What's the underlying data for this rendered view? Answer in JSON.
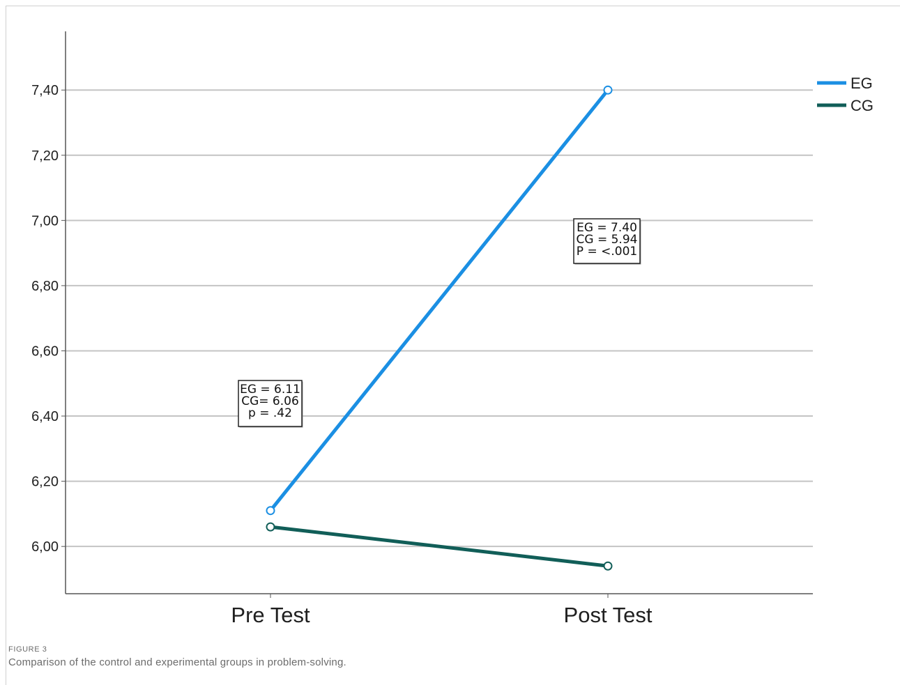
{
  "figure": {
    "label": "FIGURE 3",
    "caption": "Comparison of the control and experimental groups in problem-solving."
  },
  "chart_data": {
    "type": "line",
    "categories": [
      "Pre Test",
      "Post Test"
    ],
    "series": [
      {
        "name": "EG",
        "values": [
          6.11,
          7.4
        ],
        "color": "#1b8fe3"
      },
      {
        "name": "CG",
        "values": [
          6.06,
          5.94
        ],
        "color": "#115e58"
      }
    ],
    "yticks": [
      6.0,
      6.2,
      6.4,
      6.6,
      6.8,
      7.0,
      7.2,
      7.4
    ],
    "ytick_labels": [
      "6,00",
      "6,20",
      "6,40",
      "6,60",
      "6,80",
      "7,00",
      "7,20",
      "7,40"
    ],
    "ylim": [
      5.855,
      7.58
    ],
    "grid": true,
    "legend_position": "top-right",
    "title": "",
    "xlabel": "",
    "ylabel": "",
    "annotations": [
      {
        "category": "Pre Test",
        "lines": [
          "EG = 6.11",
          "CG= 6.06",
          "p = .42"
        ]
      },
      {
        "category": "Post Test",
        "lines": [
          "EG = 7.40",
          "CG = 5.94",
          "P = <.001"
        ]
      }
    ]
  }
}
